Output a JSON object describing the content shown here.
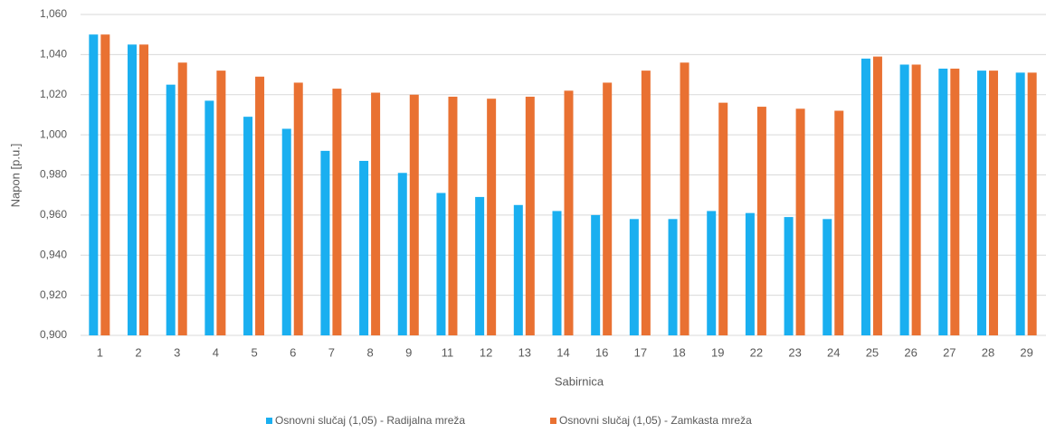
{
  "chart_data": {
    "type": "bar",
    "x_label": "Sabirnica",
    "y_label": "Napon [p.u.]",
    "categories": [
      "1",
      "2",
      "3",
      "4",
      "5",
      "6",
      "7",
      "8",
      "9",
      "11",
      "12",
      "13",
      "14",
      "16",
      "17",
      "18",
      "19",
      "22",
      "23",
      "24",
      "25",
      "26",
      "27",
      "28",
      "29"
    ],
    "series": [
      {
        "name": "Osnovni slučaj (1,05) - Radijalna mreža",
        "color": "#1aaff0",
        "values": [
          1.05,
          1.045,
          1.025,
          1.017,
          1.009,
          1.003,
          0.992,
          0.987,
          0.981,
          0.971,
          0.969,
          0.965,
          0.962,
          0.96,
          0.958,
          0.958,
          0.962,
          0.961,
          0.959,
          0.958,
          1.038,
          1.035,
          1.033,
          1.032,
          1.031
        ]
      },
      {
        "name": "Osnovni slučaj (1,05) - Zamkasta mreža",
        "color": "#e97132",
        "values": [
          1.05,
          1.045,
          1.036,
          1.032,
          1.029,
          1.026,
          1.023,
          1.021,
          1.02,
          1.019,
          1.018,
          1.019,
          1.022,
          1.026,
          1.032,
          1.036,
          1.016,
          1.014,
          1.013,
          1.012,
          1.039,
          1.035,
          1.033,
          1.032,
          1.031
        ]
      }
    ],
    "ylim": [
      0.9,
      1.06
    ],
    "yticks": [
      {
        "value": 0.9,
        "label": "0,900"
      },
      {
        "value": 0.92,
        "label": "0,920"
      },
      {
        "value": 0.94,
        "label": "0,940"
      },
      {
        "value": 0.96,
        "label": "0,960"
      },
      {
        "value": 0.98,
        "label": "0,980"
      },
      {
        "value": 1.0,
        "label": "1,000"
      },
      {
        "value": 1.02,
        "label": "1,020"
      },
      {
        "value": 1.04,
        "label": "1,040"
      },
      {
        "value": 1.06,
        "label": "1,060"
      }
    ],
    "grid": true,
    "legend": "bottom"
  }
}
